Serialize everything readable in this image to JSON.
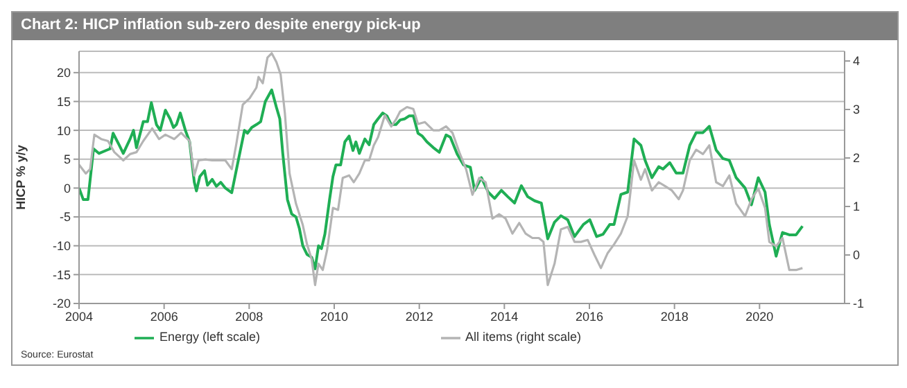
{
  "chart_data": {
    "type": "line",
    "title": "Chart 2: HICP inflation sub-zero despite energy pick-up",
    "ylabel": "HICP % y/y",
    "annotations": [
      "Source: Eurostat"
    ],
    "xlim": [
      2004,
      2022
    ],
    "xticks": [
      2004,
      2006,
      2008,
      2010,
      2012,
      2014,
      2016,
      2018,
      2020
    ],
    "ylim": [
      -20,
      23.7
    ],
    "yticks": [
      -20,
      -15,
      -10,
      -5,
      0,
      5,
      10,
      15,
      20
    ],
    "y2lim": [
      -1,
      4.2
    ],
    "y2ticks": [
      -1,
      0,
      1,
      2,
      3,
      4
    ],
    "grid": "y",
    "legend": "bottom",
    "marker": "none",
    "line_style": "solid",
    "series": [
      {
        "name": "Energy (left scale)",
        "color": "#1fae54",
        "x": [
          2004.0,
          2004.1,
          2004.21,
          2004.34,
          2004.47,
          2004.63,
          2004.73,
          2004.8,
          2004.94,
          2005.04,
          2005.2,
          2005.28,
          2005.35,
          2005.51,
          2005.61,
          2005.7,
          2005.82,
          2005.91,
          2006.03,
          2006.14,
          2006.22,
          2006.29,
          2006.38,
          2006.5,
          2006.6,
          2006.71,
          2006.76,
          2006.84,
          2006.95,
          2007.02,
          2007.13,
          2007.23,
          2007.33,
          2007.44,
          2007.59,
          2007.75,
          2007.89,
          2007.96,
          2008.06,
          2008.17,
          2008.27,
          2008.38,
          2008.53,
          2008.64,
          2008.72,
          2008.79,
          2008.9,
          2009.0,
          2009.1,
          2009.18,
          2009.26,
          2009.36,
          2009.47,
          2009.55,
          2009.63,
          2009.7,
          2009.78,
          2009.89,
          2009.97,
          2010.04,
          2010.15,
          2010.25,
          2010.35,
          2010.44,
          2010.51,
          2010.59,
          2010.72,
          2010.82,
          2010.93,
          2011.03,
          2011.14,
          2011.24,
          2011.34,
          2011.45,
          2011.55,
          2011.66,
          2011.76,
          2011.86,
          2011.97,
          2012.07,
          2012.18,
          2012.33,
          2012.47,
          2012.63,
          2012.73,
          2012.89,
          2013.04,
          2013.2,
          2013.3,
          2013.46,
          2013.62,
          2013.77,
          2013.93,
          2014.08,
          2014.24,
          2014.4,
          2014.55,
          2014.71,
          2014.87,
          2015.02,
          2015.18,
          2015.33,
          2015.49,
          2015.65,
          2015.86,
          2016.01,
          2016.17,
          2016.32,
          2016.48,
          2016.58,
          2016.74,
          2016.9,
          2017.05,
          2017.21,
          2017.31,
          2017.47,
          2017.63,
          2017.73,
          2017.89,
          2018.04,
          2018.2,
          2018.36,
          2018.51,
          2018.67,
          2018.82,
          2018.98,
          2019.14,
          2019.29,
          2019.45,
          2019.66,
          2019.81,
          2019.97,
          2020.13,
          2020.23,
          2020.39,
          2020.54,
          2020.7,
          2020.86,
          2021.01
        ],
        "values": [
          0,
          -2,
          -2,
          6.8,
          6,
          6.5,
          6.8,
          9.5,
          7.5,
          6,
          8.5,
          10,
          7,
          11.5,
          11.5,
          14.8,
          11,
          10,
          13.5,
          12,
          10.5,
          11,
          13,
          10,
          8,
          1,
          -0.5,
          2,
          3,
          0.5,
          1.5,
          0.3,
          1,
          0,
          -0.8,
          5,
          10,
          9.5,
          10.5,
          11,
          11.5,
          15,
          17,
          14,
          12,
          6,
          -2,
          -4.5,
          -5,
          -7,
          -10,
          -11.5,
          -12,
          -14,
          -10,
          -10.5,
          -8,
          -2,
          2,
          4,
          4,
          8,
          9,
          6.5,
          8,
          6,
          8.5,
          7.5,
          11,
          12,
          13,
          12.5,
          11,
          11,
          11.8,
          12,
          12.5,
          12.5,
          9.5,
          9,
          8,
          7,
          6.2,
          9.2,
          8.8,
          5.9,
          4,
          3.6,
          -0.4,
          1.8,
          -0.7,
          -1.8,
          -0.4,
          -1.5,
          -2.6,
          0.4,
          -1.5,
          -2.2,
          -2.6,
          -8.8,
          -5.9,
          -4.8,
          -5.5,
          -8.4,
          -6.3,
          -5.5,
          -8.4,
          -8,
          -6.3,
          -6.3,
          -1.1,
          -0.7,
          8.5,
          7.4,
          4.8,
          1.8,
          3.7,
          3.3,
          4.4,
          2.6,
          2.6,
          7.4,
          9.6,
          9.6,
          10.7,
          6.6,
          5.1,
          4.8,
          1.8,
          0,
          -2.9,
          1.8,
          -0.7,
          -6.3,
          -11.8,
          -7.7,
          -8.1,
          -8.1,
          -6.6
        ]
      },
      {
        "name": "All items (right scale)",
        "color": "#b4b4b4",
        "axis": "y2",
        "x": [
          2004.0,
          2004.16,
          2004.26,
          2004.36,
          2004.52,
          2004.68,
          2004.83,
          2004.99,
          2005.04,
          2005.2,
          2005.35,
          2005.51,
          2005.72,
          2005.88,
          2006.03,
          2006.24,
          2006.4,
          2006.5,
          2006.6,
          2006.71,
          2006.81,
          2006.97,
          2007.13,
          2007.28,
          2007.44,
          2007.59,
          2007.7,
          2007.85,
          2008.01,
          2008.17,
          2008.22,
          2008.32,
          2008.43,
          2008.53,
          2008.64,
          2008.74,
          2008.84,
          2008.95,
          2009.1,
          2009.26,
          2009.36,
          2009.47,
          2009.55,
          2009.63,
          2009.73,
          2009.83,
          2009.97,
          2010.09,
          2010.2,
          2010.35,
          2010.46,
          2010.59,
          2010.72,
          2010.82,
          2010.93,
          2011.03,
          2011.19,
          2011.34,
          2011.45,
          2011.55,
          2011.71,
          2011.86,
          2011.97,
          2012.13,
          2012.33,
          2012.47,
          2012.63,
          2012.78,
          2012.94,
          2013.1,
          2013.25,
          2013.41,
          2013.56,
          2013.72,
          2013.88,
          2014.03,
          2014.19,
          2014.35,
          2014.5,
          2014.66,
          2014.81,
          2014.92,
          2015.02,
          2015.18,
          2015.33,
          2015.49,
          2015.65,
          2015.8,
          2015.96,
          2016.12,
          2016.27,
          2016.43,
          2016.58,
          2016.74,
          2016.9,
          2017.05,
          2017.21,
          2017.31,
          2017.47,
          2017.63,
          2017.78,
          2017.94,
          2018.1,
          2018.2,
          2018.36,
          2018.51,
          2018.67,
          2018.82,
          2018.98,
          2019.14,
          2019.29,
          2019.45,
          2019.66,
          2019.81,
          2019.97,
          2020.13,
          2020.23,
          2020.39,
          2020.54,
          2020.7,
          2020.86,
          2021.01
        ],
        "values": [
          1.86,
          1.68,
          1.77,
          2.48,
          2.39,
          2.35,
          2.12,
          1.99,
          1.95,
          2.08,
          2.12,
          2.35,
          2.61,
          2.39,
          2.48,
          2.39,
          2.52,
          2.43,
          2.35,
          1.64,
          1.95,
          1.97,
          1.95,
          1.95,
          1.95,
          1.77,
          2.3,
          3.1,
          3.23,
          3.45,
          3.67,
          3.54,
          4.07,
          4.16,
          3.98,
          3.72,
          2.92,
          1.68,
          1.06,
          0.62,
          0.22,
          -0.09,
          -0.62,
          -0.18,
          -0.31,
          0.09,
          0.97,
          0.93,
          1.59,
          1.64,
          1.5,
          1.68,
          1.95,
          1.95,
          2.26,
          2.43,
          2.88,
          2.65,
          2.79,
          2.96,
          3.05,
          3.01,
          2.7,
          2.74,
          2.57,
          2.57,
          2.65,
          2.52,
          2.12,
          1.77,
          1.24,
          1.59,
          1.5,
          0.75,
          0.84,
          0.75,
          0.44,
          0.66,
          0.44,
          0.35,
          0.35,
          0.27,
          -0.62,
          -0.18,
          0.53,
          0.58,
          0.27,
          0.27,
          0.31,
          0,
          -0.27,
          0.04,
          0.22,
          0.44,
          0.8,
          1.95,
          1.55,
          1.77,
          1.33,
          1.5,
          1.42,
          1.33,
          1.15,
          1.33,
          1.95,
          2.17,
          2.08,
          2.26,
          1.5,
          1.42,
          1.64,
          1.06,
          0.8,
          1.15,
          1.37,
          0.97,
          0.27,
          0.18,
          0.35,
          -0.31,
          -0.31,
          -0.27
        ]
      }
    ]
  }
}
